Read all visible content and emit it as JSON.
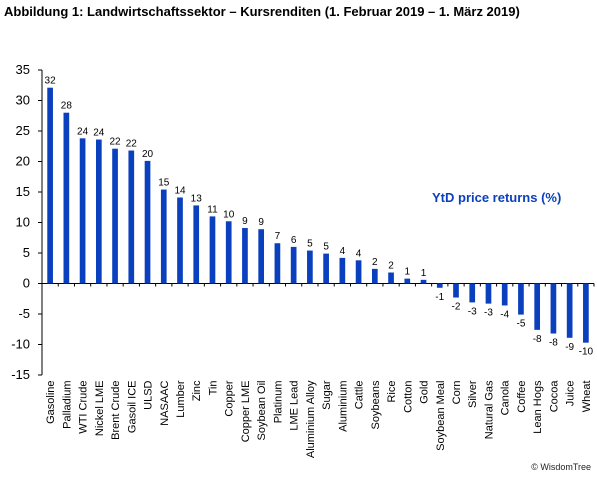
{
  "title": "Abbildung 1: Landwirtschaftssektor – Kursrenditen (1. Februar 2019 – 1. März 2019)",
  "credit": "© WisdomTree",
  "chart_data": {
    "type": "bar",
    "title": "Abbildung 1: Landwirtschaftssektor – Kursrenditen (1. Februar 2019 – 1. März 2019)",
    "annotation": "YtD price returns (%)",
    "bar_color": "#0a3fbe",
    "annotation_color": "#0a3fbe",
    "xlabel": "",
    "ylabel": "",
    "ylim": [
      -15,
      35
    ],
    "yticks": [
      -15,
      -10,
      -5,
      0,
      5,
      10,
      15,
      20,
      25,
      30,
      35
    ],
    "grid": false,
    "legend": "none",
    "categories": [
      "Gasoline",
      "Palladium",
      "WTI Crude",
      "Nickel LME",
      "Brent Crude",
      "Gasoil ICE",
      "ULSD",
      "NASAAC",
      "Lumber",
      "Zinc",
      "Tin",
      "Copper",
      "Copper LME",
      "Soybean Oil",
      "Platinum",
      "LME Lead",
      "Aluminium Alloy",
      "Sugar",
      "Aluminium",
      "Cattle",
      "Soybeans",
      "Rice",
      "Cotton",
      "Gold",
      "Soybean Meal",
      "Corn",
      "Silver",
      "Natural Gas",
      "Canola",
      "Coffee",
      "Lean Hogs",
      "Cocoa",
      "Juice",
      "Wheat"
    ],
    "values": [
      32.1,
      28.0,
      23.8,
      23.6,
      22.1,
      21.8,
      20.1,
      15.4,
      14.1,
      12.8,
      11.0,
      10.2,
      9.1,
      8.9,
      6.6,
      6.0,
      5.4,
      4.9,
      4.2,
      3.8,
      2.4,
      1.8,
      0.8,
      0.6,
      -0.7,
      -2.3,
      -3.1,
      -3.3,
      -3.6,
      -5.1,
      -7.6,
      -8.2,
      -8.9,
      -9.7
    ],
    "data_labels": [
      "32",
      "28",
      "24",
      "24",
      "22",
      "22",
      "20",
      "15",
      "14",
      "13",
      "11",
      "10",
      "9",
      "9",
      "7",
      "6",
      "5",
      "5",
      "4",
      "4",
      "2",
      "2",
      "1",
      "1",
      "-1",
      "-2",
      "-3",
      "-3",
      "-4",
      "-5",
      "-8",
      "-8",
      "-9",
      "-10"
    ]
  }
}
